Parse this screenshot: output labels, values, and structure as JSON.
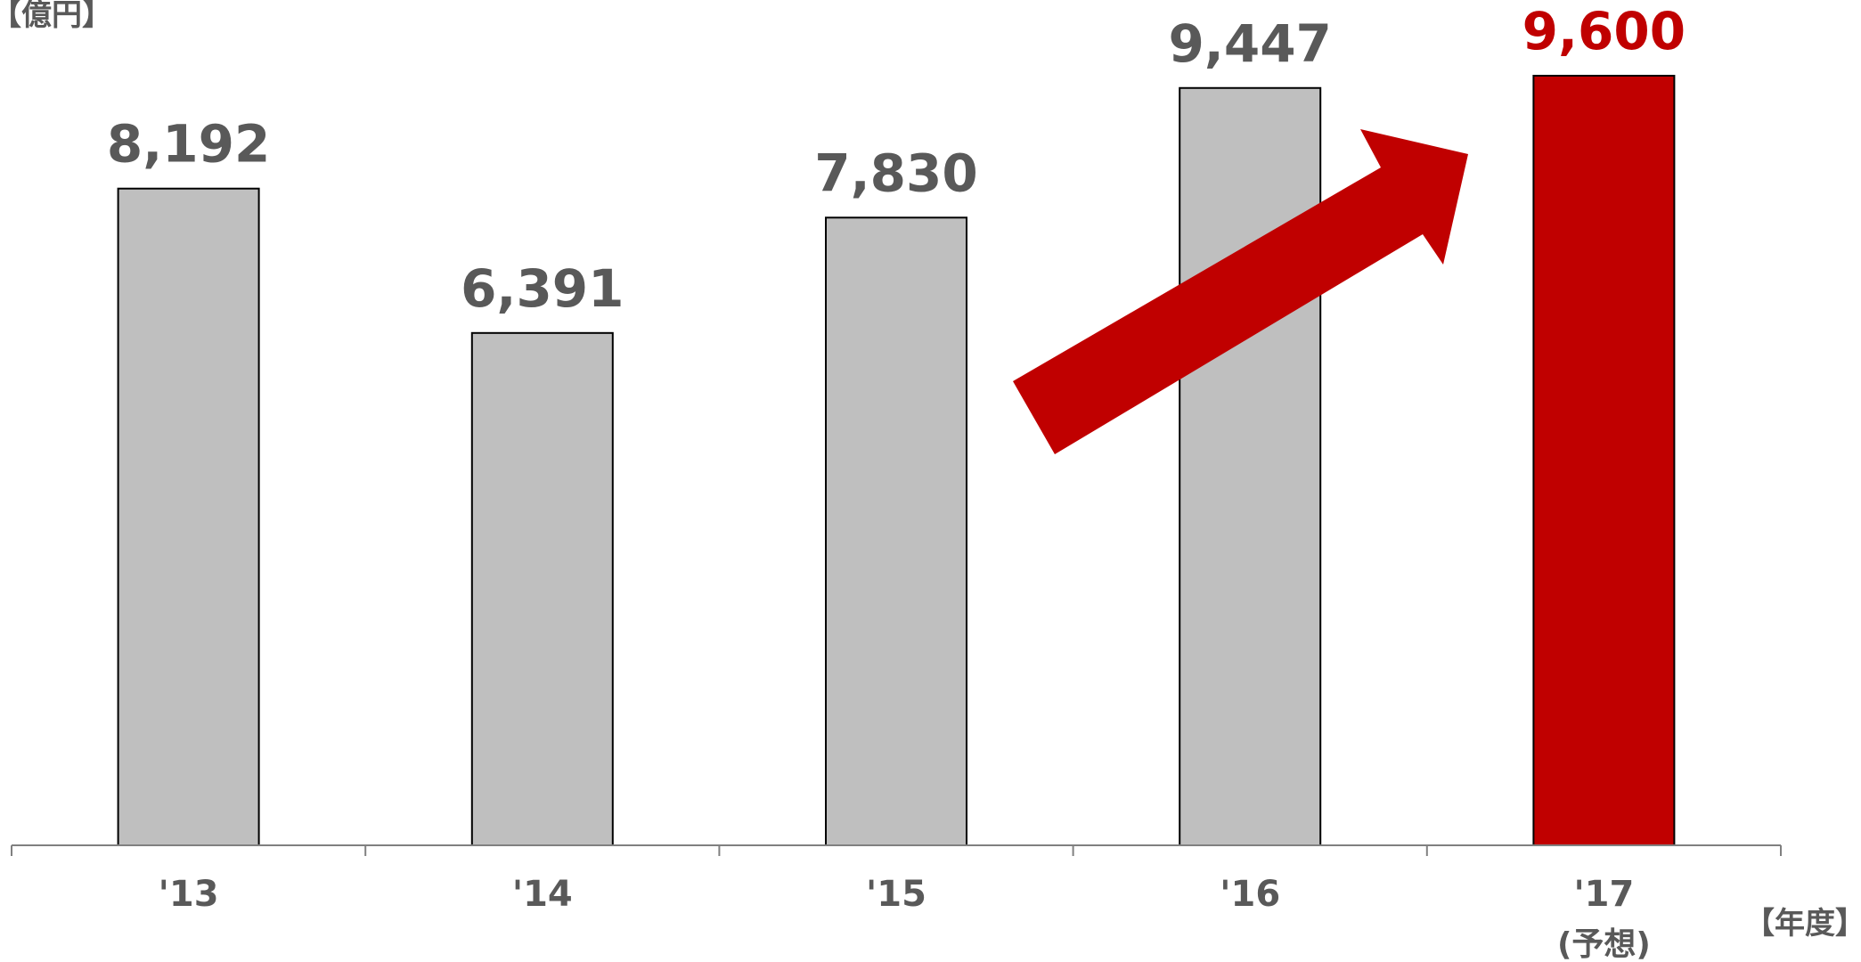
{
  "chart_data": {
    "type": "bar",
    "y_unit_label": "【億円】",
    "x_unit_label": "【年度】",
    "categories": [
      "'13",
      "'14",
      "'15",
      "'16",
      "'17"
    ],
    "category_sublabels": [
      "",
      "",
      "",
      "",
      "(予想)"
    ],
    "values": [
      8192,
      6391,
      7830,
      9447,
      9600
    ],
    "value_labels": [
      "8,192",
      "6,391",
      "7,830",
      "9,447",
      "9,600"
    ],
    "ylim": [
      0,
      9600
    ],
    "grid": false,
    "legend": "none",
    "highlight_index": 4,
    "annotation": "upward-trend-arrow",
    "colors": {
      "bar": "#bfbfbf",
      "bar_highlight": "#c00000",
      "bar_stroke": "#000000",
      "label": "#595959",
      "label_highlight": "#c00000",
      "axis": "#808080",
      "arrow": "#c00000"
    }
  }
}
